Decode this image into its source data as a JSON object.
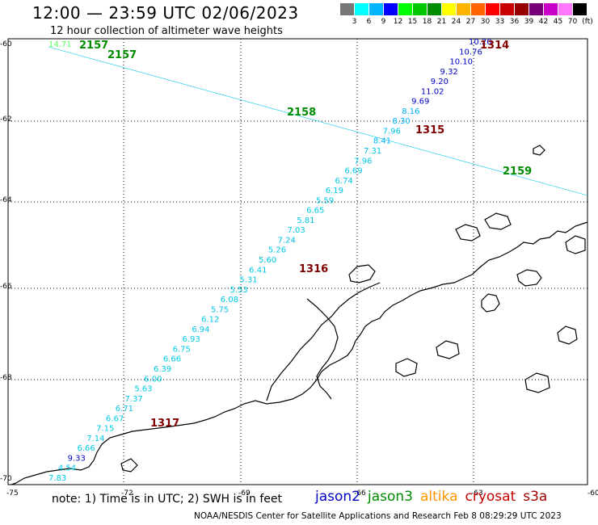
{
  "title": "12:00 — 23:59 UTC 02/06/2023",
  "subtitle": "12 hour collection of altimeter wave heights",
  "legend": {
    "unit": "(ft)",
    "bins": [
      {
        "label": "3",
        "color": "#787878"
      },
      {
        "label": "6",
        "color": "#00ffff"
      },
      {
        "label": "9",
        "color": "#00b4ff"
      },
      {
        "label": "12",
        "color": "#0000ff"
      },
      {
        "label": "15",
        "color": "#00ff00"
      },
      {
        "label": "18",
        "color": "#00c800"
      },
      {
        "label": "21",
        "color": "#008c00"
      },
      {
        "label": "24",
        "color": "#ffff00"
      },
      {
        "label": "27",
        "color": "#ffb400"
      },
      {
        "label": "30",
        "color": "#ff6400"
      },
      {
        "label": "33",
        "color": "#ff0000"
      },
      {
        "label": "36",
        "color": "#c80000"
      },
      {
        "label": "39",
        "color": "#960000"
      },
      {
        "label": "42",
        "color": "#780078"
      },
      {
        "label": "45",
        "color": "#c800c8"
      },
      {
        "label": "70",
        "color": "#ff78ff"
      },
      {
        "label": "",
        "color": "#000000"
      }
    ]
  },
  "axes": {
    "lat_labels": [
      "-60",
      "-62",
      "-64",
      "-66",
      "-68",
      "-70"
    ],
    "lon_labels": [
      "-75",
      "-72",
      "-69",
      "-66",
      "-63",
      "-60"
    ]
  },
  "passes": [
    {
      "label": "2157",
      "color": "#008c00"
    },
    {
      "label": "2157",
      "color": "#008c00"
    },
    {
      "label": "2158",
      "color": "#008c00"
    },
    {
      "label": "2159",
      "color": "#008c00"
    },
    {
      "label": "1314",
      "color": "#800000"
    },
    {
      "label": "1315",
      "color": "#800000"
    },
    {
      "label": "1316",
      "color": "#800000"
    },
    {
      "label": "1317",
      "color": "#800000"
    }
  ],
  "track_a_values": [
    "10.20",
    "10.76",
    "10.10",
    "9.32",
    "9.20",
    "11.02",
    "9.69",
    "8.16",
    "8.30",
    "7.96",
    "8.41",
    "7.31",
    "7.96",
    "6.69",
    "6.74",
    "6.19",
    "5.59",
    "6.65",
    "5.81",
    "7.03",
    "7.24",
    "5.26",
    "5.60",
    "6.41",
    "5.31",
    "5.53",
    "6.08",
    "5.75",
    "6.12",
    "6.94",
    "6.93",
    "6.75",
    "6.66",
    "6.39",
    "6.00",
    "5.63",
    "7.37",
    "6.71",
    "6.67",
    "7.15",
    "7.14",
    "6.66",
    "9.33",
    "4.54",
    "7.83"
  ],
  "track_b_values": [
    "14.71"
  ],
  "note": "note: 1) Time is in UTC; 2) SWH is in feet",
  "satellites": [
    {
      "name": "jason2",
      "color": "#0000c8"
    },
    {
      "name": "jason3",
      "color": "#008c00"
    },
    {
      "name": "altika",
      "color": "#ff9600"
    },
    {
      "name": "cryosat",
      "color": "#c80000"
    },
    {
      "name": "s3a",
      "color": "#a00000"
    }
  ],
  "credit": "NOAA/NESDIS Center for Satellite Applications and Research    Feb  8 08:29:29 UTC 2023"
}
